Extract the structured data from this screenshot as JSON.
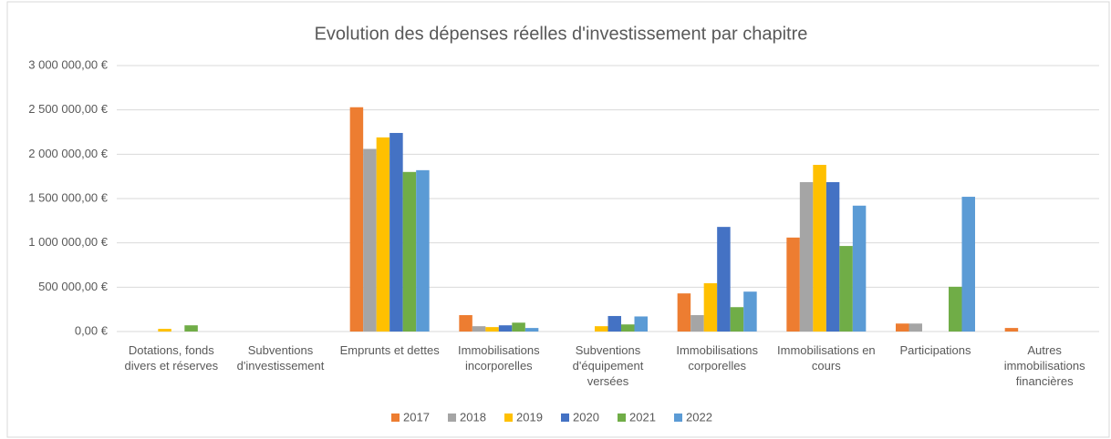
{
  "chart_data": {
    "type": "bar",
    "title": "Evolution des dépenses réelles d'investissement par chapitre",
    "categories": [
      "Dotations, fonds divers et réserves",
      "Subventions d'investissement",
      "Emprunts et dettes",
      "Immobilisations incorporelles",
      "Subventions d'équipement versées",
      "Immobilisations corporelles",
      "Immobilisations en cours",
      "Participations",
      "Autres immobilisations financières"
    ],
    "series": [
      {
        "name": "2017",
        "color": "#ed7d31",
        "values": [
          0,
          0,
          2530000,
          185000,
          0,
          430000,
          1060000,
          90000,
          40000
        ]
      },
      {
        "name": "2018",
        "color": "#a5a5a5",
        "values": [
          0,
          0,
          2060000,
          60000,
          0,
          185000,
          1685000,
          90000,
          0
        ]
      },
      {
        "name": "2019",
        "color": "#ffc000",
        "values": [
          30000,
          0,
          2190000,
          50000,
          60000,
          545000,
          1880000,
          0,
          0
        ]
      },
      {
        "name": "2020",
        "color": "#4472c4",
        "values": [
          0,
          0,
          2240000,
          70000,
          175000,
          1180000,
          1685000,
          0,
          0
        ]
      },
      {
        "name": "2021",
        "color": "#70ad47",
        "values": [
          70000,
          0,
          1800000,
          100000,
          80000,
          275000,
          965000,
          505000,
          0
        ]
      },
      {
        "name": "2022",
        "color": "#5b9bd5",
        "values": [
          0,
          0,
          1820000,
          40000,
          170000,
          450000,
          1420000,
          1520000,
          0
        ]
      }
    ],
    "ylim": [
      0,
      3000000
    ],
    "yticks": [
      {
        "value": 0,
        "label": "0,00 €"
      },
      {
        "value": 500000,
        "label": "500 000,00 €"
      },
      {
        "value": 1000000,
        "label": "1 000 000,00 €"
      },
      {
        "value": 1500000,
        "label": "1 500 000,00 €"
      },
      {
        "value": 2000000,
        "label": "2 000 000,00 €"
      },
      {
        "value": 2500000,
        "label": "2 500 000,00 €"
      },
      {
        "value": 3000000,
        "label": "3 000 000,00 €"
      }
    ],
    "grid": true,
    "legend": "bottom"
  }
}
